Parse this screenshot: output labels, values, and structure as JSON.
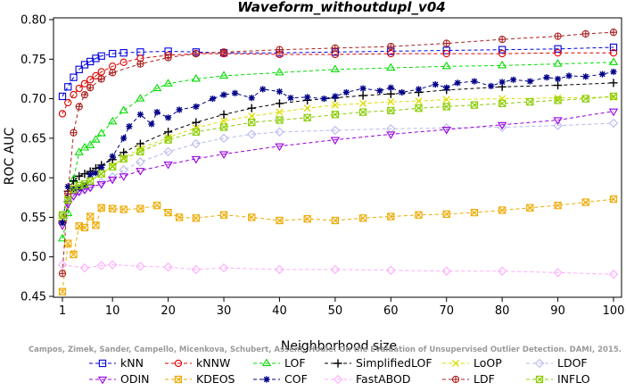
{
  "chart_data": {
    "type": "line",
    "title": "Waveform_withoutdupl_v04",
    "xlabel": "Neighborhood size",
    "ylabel": "ROC AUC",
    "xlim": [
      1,
      100
    ],
    "ylim": [
      0.45,
      0.8
    ],
    "x_ticks": [
      1,
      10,
      20,
      30,
      40,
      50,
      60,
      70,
      80,
      90,
      100
    ],
    "y_ticks": [
      "0.45",
      "0.50",
      "0.55",
      "0.60",
      "0.65",
      "0.70",
      "0.75",
      "0.80"
    ],
    "grid": false,
    "legend_position": "bottom",
    "watermark": "Campos, Zimek, Sander, Campello, Micenkova, Schubert, Assent, Houle: On the Evaluation of Unsupervised Outlier Detection. DAMI, 2015.",
    "series": [
      {
        "name": "kNN",
        "color": "#0000dd",
        "marker": "square",
        "x": [
          1,
          2,
          3,
          4,
          5,
          6,
          7,
          8,
          10,
          12,
          15,
          20,
          25,
          30,
          40,
          50,
          60,
          70,
          80,
          90,
          100
        ],
        "y": [
          0.703,
          0.715,
          0.727,
          0.737,
          0.743,
          0.747,
          0.751,
          0.754,
          0.757,
          0.758,
          0.759,
          0.76,
          0.759,
          0.758,
          0.758,
          0.759,
          0.76,
          0.761,
          0.762,
          0.763,
          0.765
        ]
      },
      {
        "name": "kNNW",
        "color": "#dd0000",
        "marker": "circle",
        "x": [
          1,
          2,
          3,
          4,
          5,
          6,
          7,
          8,
          10,
          12,
          15,
          20,
          25,
          30,
          40,
          50,
          60,
          70,
          80,
          90,
          100
        ],
        "y": [
          0.681,
          0.695,
          0.705,
          0.713,
          0.719,
          0.724,
          0.729,
          0.734,
          0.741,
          0.746,
          0.751,
          0.755,
          0.757,
          0.757,
          0.756,
          0.756,
          0.757,
          0.757,
          0.757,
          0.758,
          0.758
        ]
      },
      {
        "name": "LOF",
        "color": "#00dd00",
        "marker": "triangle",
        "x": [
          1,
          2,
          3,
          4,
          5,
          6,
          7,
          8,
          10,
          12,
          15,
          18,
          20,
          25,
          30,
          40,
          50,
          60,
          70,
          80,
          90,
          100
        ],
        "y": [
          0.523,
          0.555,
          0.598,
          0.632,
          0.638,
          0.641,
          0.648,
          0.656,
          0.671,
          0.685,
          0.7,
          0.713,
          0.719,
          0.725,
          0.729,
          0.733,
          0.737,
          0.739,
          0.741,
          0.742,
          0.744,
          0.746
        ]
      },
      {
        "name": "SimplifiedLOF",
        "color": "#000000",
        "marker": "plus",
        "x": [
          1,
          2,
          3,
          4,
          5,
          6,
          7,
          8,
          10,
          12,
          15,
          20,
          25,
          30,
          35,
          40,
          45,
          50,
          55,
          60,
          65,
          70,
          80,
          90,
          100
        ],
        "y": [
          0.545,
          0.583,
          0.596,
          0.602,
          0.605,
          0.608,
          0.612,
          0.616,
          0.623,
          0.632,
          0.643,
          0.658,
          0.67,
          0.68,
          0.688,
          0.694,
          0.698,
          0.701,
          0.704,
          0.706,
          0.708,
          0.711,
          0.715,
          0.717,
          0.72
        ]
      },
      {
        "name": "LoOP",
        "color": "#dddd00",
        "marker": "x",
        "x": [
          1,
          2,
          3,
          4,
          5,
          6,
          8,
          10,
          12,
          15,
          20,
          25,
          30,
          35,
          40,
          45,
          50,
          55,
          60,
          65,
          70,
          80,
          90,
          100
        ],
        "y": [
          0.55,
          0.574,
          0.588,
          0.59,
          0.592,
          0.596,
          0.605,
          0.615,
          0.625,
          0.637,
          0.651,
          0.663,
          0.672,
          0.678,
          0.683,
          0.688,
          0.692,
          0.694,
          0.696,
          0.697,
          0.699,
          0.7,
          0.701,
          0.702
        ]
      },
      {
        "name": "LDOF",
        "color": "#b8b8ee",
        "marker": "diamond",
        "x": [
          1,
          2,
          3,
          4,
          5,
          6,
          8,
          10,
          12,
          15,
          20,
          25,
          30,
          35,
          40,
          50,
          60,
          70,
          80,
          90,
          100
        ],
        "y": [
          0.553,
          0.57,
          0.578,
          0.582,
          0.585,
          0.588,
          0.594,
          0.601,
          0.61,
          0.62,
          0.633,
          0.643,
          0.65,
          0.655,
          0.658,
          0.66,
          0.662,
          0.663,
          0.664,
          0.666,
          0.669
        ]
      },
      {
        "name": "ODIN",
        "color": "#9900dd",
        "marker": "triangle-down",
        "x": [
          1,
          2,
          3,
          4,
          5,
          6,
          8,
          10,
          12,
          15,
          20,
          25,
          30,
          40,
          50,
          60,
          70,
          80,
          90,
          100
        ],
        "y": [
          0.54,
          0.567,
          0.577,
          0.583,
          0.585,
          0.588,
          0.592,
          0.598,
          0.602,
          0.609,
          0.617,
          0.624,
          0.63,
          0.64,
          0.648,
          0.655,
          0.661,
          0.667,
          0.673,
          0.684
        ]
      },
      {
        "name": "KDEOS",
        "color": "#eeaa00",
        "marker": "box-x",
        "x": [
          1,
          2,
          3,
          4,
          5,
          6,
          7,
          8,
          10,
          12,
          15,
          18,
          20,
          22,
          25,
          30,
          35,
          40,
          45,
          50,
          55,
          60,
          65,
          70,
          75,
          80,
          85,
          90,
          95,
          100
        ],
        "y": [
          0.456,
          0.517,
          0.503,
          0.539,
          0.537,
          0.551,
          0.54,
          0.562,
          0.561,
          0.56,
          0.561,
          0.565,
          0.556,
          0.55,
          0.549,
          0.553,
          0.55,
          0.546,
          0.548,
          0.546,
          0.549,
          0.551,
          0.553,
          0.554,
          0.556,
          0.559,
          0.562,
          0.565,
          0.569,
          0.573
        ]
      },
      {
        "name": "COF",
        "color": "#000088",
        "marker": "asterisk",
        "x": [
          1,
          2,
          3,
          4,
          5,
          6,
          7,
          8,
          10,
          12,
          13,
          15,
          17,
          18,
          20,
          22,
          25,
          28,
          30,
          32,
          35,
          37,
          40,
          42,
          45,
          48,
          50,
          52,
          55,
          58,
          60,
          62,
          65,
          68,
          70,
          72,
          75,
          78,
          80,
          82,
          85,
          88,
          90,
          92,
          95,
          98,
          100
        ],
        "y": [
          0.543,
          0.589,
          0.586,
          0.587,
          0.59,
          0.604,
          0.606,
          0.613,
          0.627,
          0.65,
          0.665,
          0.68,
          0.668,
          0.683,
          0.676,
          0.686,
          0.69,
          0.7,
          0.705,
          0.707,
          0.701,
          0.712,
          0.709,
          0.701,
          0.702,
          0.7,
          0.703,
          0.708,
          0.713,
          0.71,
          0.714,
          0.708,
          0.712,
          0.718,
          0.714,
          0.72,
          0.722,
          0.716,
          0.721,
          0.724,
          0.722,
          0.727,
          0.725,
          0.729,
          0.728,
          0.731,
          0.734
        ]
      },
      {
        "name": "FastABOD",
        "color": "#ffaaff",
        "marker": "diamond",
        "x": [
          1,
          5,
          8,
          10,
          15,
          20,
          25,
          30,
          40,
          50,
          60,
          70,
          80,
          90,
          100
        ],
        "y": [
          0.49,
          0.486,
          0.489,
          0.49,
          0.488,
          0.487,
          0.484,
          0.486,
          0.484,
          0.484,
          0.483,
          0.482,
          0.482,
          0.48,
          0.478
        ]
      },
      {
        "name": "LDF",
        "color": "#aa2222",
        "marker": "circle-plus",
        "x": [
          1,
          2,
          3,
          4,
          5,
          6,
          8,
          10,
          15,
          20,
          25,
          30,
          40,
          50,
          60,
          70,
          80,
          90,
          95,
          100
        ],
        "y": [
          0.479,
          0.58,
          0.657,
          0.69,
          0.705,
          0.714,
          0.725,
          0.733,
          0.744,
          0.752,
          0.757,
          0.759,
          0.762,
          0.764,
          0.766,
          0.77,
          0.775,
          0.779,
          0.782,
          0.784
        ]
      },
      {
        "name": "INFLO",
        "color": "#88cc00",
        "marker": "box-x",
        "x": [
          1,
          2,
          3,
          4,
          5,
          6,
          8,
          10,
          12,
          15,
          20,
          25,
          30,
          35,
          40,
          45,
          50,
          55,
          60,
          65,
          70,
          75,
          80,
          85,
          90,
          95,
          100
        ],
        "y": [
          0.553,
          0.572,
          0.585,
          0.59,
          0.592,
          0.596,
          0.605,
          0.614,
          0.624,
          0.633,
          0.648,
          0.658,
          0.664,
          0.67,
          0.673,
          0.676,
          0.68,
          0.683,
          0.685,
          0.688,
          0.69,
          0.692,
          0.694,
          0.696,
          0.698,
          0.7,
          0.703
        ]
      }
    ]
  }
}
